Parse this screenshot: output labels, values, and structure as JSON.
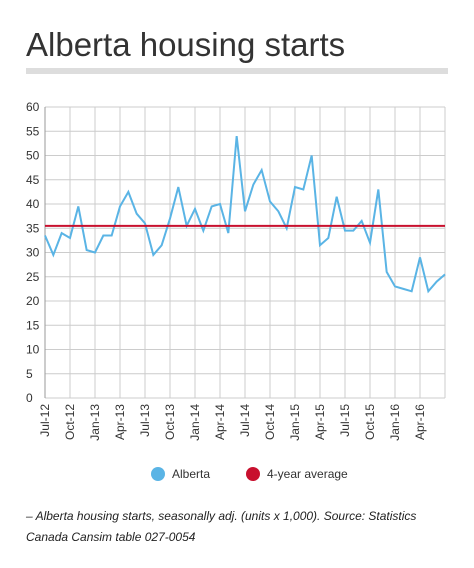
{
  "chart_data": {
    "type": "line",
    "title": "Alberta housing starts",
    "note": "– Alberta housing starts, seasonally adj. (units x 1,000). Source: Statistics Canada Cansim table 027-0054",
    "categories": [
      "Jul-12",
      null,
      null,
      "Oct-12",
      null,
      null,
      "Jan-13",
      null,
      null,
      "Apr-13",
      null,
      null,
      "Jul-13",
      null,
      null,
      "Oct-13",
      null,
      null,
      "Jan-14",
      null,
      null,
      "Apr-14",
      null,
      null,
      "Jul-14",
      null,
      null,
      "Oct-14",
      null,
      null,
      "Jan-15",
      null,
      null,
      "Apr-15",
      null,
      null,
      "Jul-15",
      null,
      null,
      "Oct-15",
      null,
      null,
      "Jan-16",
      null,
      null,
      "Apr-16",
      null,
      null,
      null
    ],
    "series": [
      {
        "name": "Alberta",
        "color": "#5ab4e5",
        "values": [
          33.5,
          29.5,
          34,
          33,
          39.5,
          30.5,
          30,
          33.5,
          33.5,
          39.5,
          42.5,
          38,
          36,
          29.5,
          31.5,
          37,
          43.5,
          35.5,
          39,
          34.5,
          39.5,
          40,
          34,
          54,
          38.5,
          44,
          47,
          40.5,
          38.5,
          35,
          43.5,
          43,
          50,
          31.5,
          33,
          41.5,
          34.5,
          34.5,
          36.5,
          32,
          43,
          26,
          23,
          22.5,
          22,
          29,
          22,
          24,
          25.5
        ]
      }
    ],
    "average": {
      "name": "4-year average",
      "color": "#c8102e",
      "value": 35.5
    },
    "ylim": [
      0,
      60
    ],
    "yticks": [
      0,
      5,
      10,
      15,
      20,
      25,
      30,
      35,
      40,
      45,
      50,
      55,
      60
    ],
    "grid": true
  }
}
